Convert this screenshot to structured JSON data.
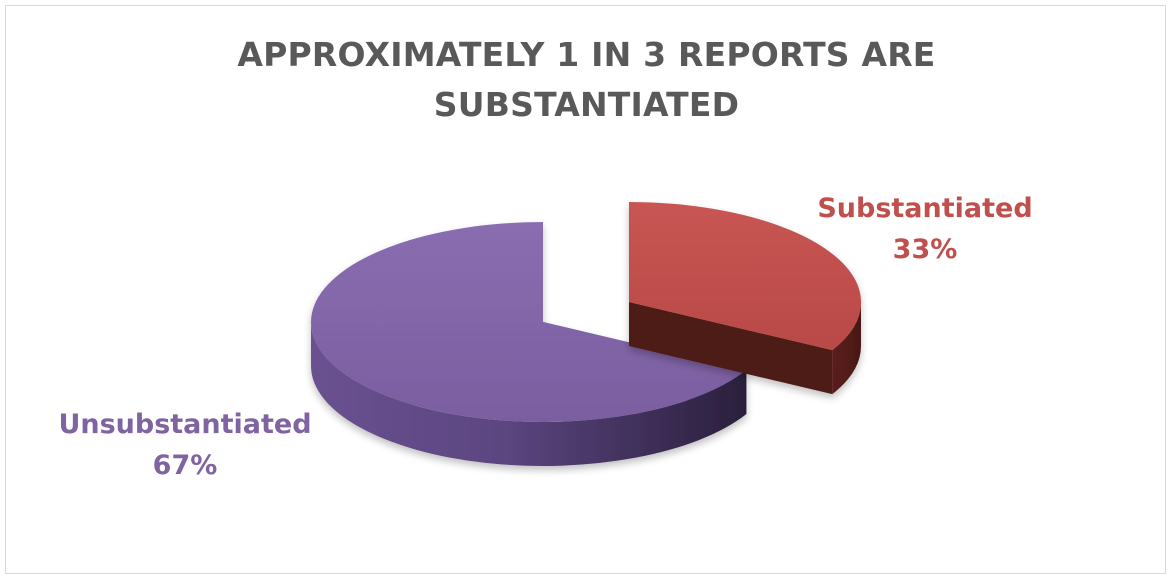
{
  "chart_data": {
    "type": "pie",
    "style": "3d-exploded",
    "title_lines": [
      "APPROXIMATELY 1 IN 3 REPORTS ARE",
      "SUBSTANTIATED"
    ],
    "slices": [
      {
        "name": "Substantiated",
        "value": 33,
        "value_label": "33%",
        "color": "#c0504d"
      },
      {
        "name": "Unsubstantiated",
        "value": 67,
        "value_label": "67%",
        "color": "#8064a2"
      }
    ],
    "legend": "none",
    "data_labels": "outside, category name and percentage"
  }
}
